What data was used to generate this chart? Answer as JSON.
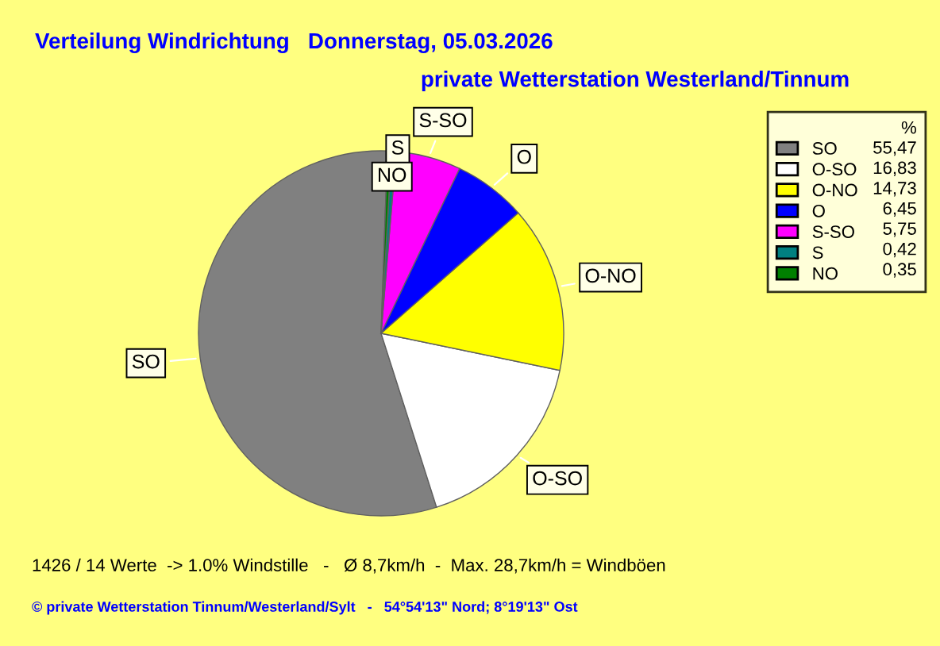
{
  "chart_data": {
    "type": "pie",
    "title": "Verteilung Windrichtung   Donnerstag, 05.03.2026",
    "subtitle": "private Wetterstation Westerland/Tinnum",
    "legend_title": "%",
    "legend": "right",
    "categories": [
      "SO",
      "O-SO",
      "O-NO",
      "O",
      "S-SO",
      "S",
      "NO"
    ],
    "values": [
      55.47,
      16.83,
      14.73,
      6.45,
      5.75,
      0.42,
      0.35
    ],
    "value_labels": [
      "55,47",
      "16,83",
      "14,73",
      "6,45",
      "5,75",
      "0,42",
      "0,35"
    ],
    "colors": [
      "#808080",
      "#ffffff",
      "#ffff00",
      "#0000ff",
      "#ff00ff",
      "#008080",
      "#008000"
    ],
    "annotations": [
      "1426 / 14 Werte  -> 1.0% Windstille   -   Ø 8,7km/h  -  Max. 28,7km/h = Windböen",
      "© private Wetterstation Tinnum/Westerland/Sylt   -   54°54'13\" Nord; 8°19'13\" Ost"
    ]
  }
}
